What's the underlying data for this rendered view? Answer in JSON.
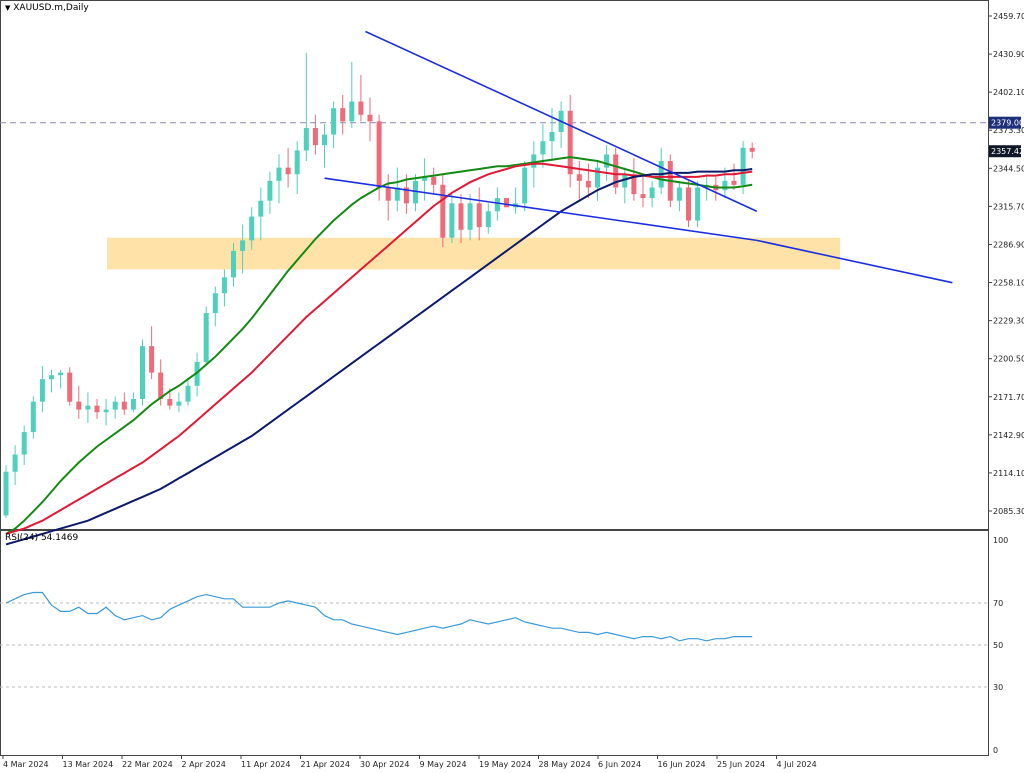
{
  "header": {
    "symbol_label": "XAUUSD.m,Daily",
    "menu_icon": "triangle-down-icon"
  },
  "rsi_header": {
    "label": "RSI(24) 54.1469"
  },
  "colors": {
    "bull": "#4fd0bd",
    "bear": "#f06b7a",
    "ma_green": "#148a14",
    "ma_red": "#e01a35",
    "ma_navy": "#0b1a6a",
    "trend": "#1a2ee0",
    "zone": "#ffe2a8",
    "rsi": "#3a9ad9",
    "grid": "#bcbcbc",
    "box_dark": "#101827",
    "box_blue": "#1c2f7a"
  },
  "chart_data": [
    {
      "type": "candlestick",
      "title": "XAUUSD.m,Daily",
      "y_ticks": [
        "2459.70",
        "2430.90",
        "2402.10",
        "2373.30",
        "2344.50",
        "2315.70",
        "2286.90",
        "2258.10",
        "2229.30",
        "2200.50",
        "2171.70",
        "2142.90",
        "2114.10",
        "2085.30"
      ],
      "ylim": [
        2068,
        2460
      ],
      "x_ticks": [
        "4 Mar 2024",
        "13 Mar 2024",
        "22 Mar 2024",
        "2 Apr 2024",
        "11 Apr 2024",
        "21 Apr 2024",
        "30 Apr 2024",
        "9 May 2024",
        "19 May 2024",
        "28 May 2024",
        "6 Jun 2024",
        "16 Jun 2024",
        "25 Jun 2024",
        "4 Jul 2024"
      ],
      "price_markers": [
        {
          "label": "2379.00",
          "value": 2379.0,
          "style": "dashed"
        },
        {
          "label": "2357.42",
          "value": 2357.42,
          "style": "current"
        }
      ],
      "candles": [
        {
          "o": 2082,
          "h": 2120,
          "l": 2080,
          "c": 2115
        },
        {
          "o": 2115,
          "h": 2135,
          "l": 2105,
          "c": 2128
        },
        {
          "o": 2128,
          "h": 2150,
          "l": 2120,
          "c": 2145
        },
        {
          "o": 2145,
          "h": 2172,
          "l": 2140,
          "c": 2168
        },
        {
          "o": 2168,
          "h": 2195,
          "l": 2160,
          "c": 2185
        },
        {
          "o": 2185,
          "h": 2192,
          "l": 2175,
          "c": 2188
        },
        {
          "o": 2188,
          "h": 2192,
          "l": 2178,
          "c": 2190
        },
        {
          "o": 2190,
          "h": 2194,
          "l": 2165,
          "c": 2168
        },
        {
          "o": 2168,
          "h": 2180,
          "l": 2155,
          "c": 2162
        },
        {
          "o": 2162,
          "h": 2175,
          "l": 2152,
          "c": 2165
        },
        {
          "o": 2165,
          "h": 2170,
          "l": 2155,
          "c": 2160
        },
        {
          "o": 2160,
          "h": 2170,
          "l": 2150,
          "c": 2162
        },
        {
          "o": 2162,
          "h": 2172,
          "l": 2155,
          "c": 2168
        },
        {
          "o": 2168,
          "h": 2175,
          "l": 2158,
          "c": 2162
        },
        {
          "o": 2162,
          "h": 2175,
          "l": 2160,
          "c": 2170
        },
        {
          "o": 2170,
          "h": 2215,
          "l": 2165,
          "c": 2210
        },
        {
          "o": 2210,
          "h": 2225,
          "l": 2185,
          "c": 2190
        },
        {
          "o": 2190,
          "h": 2200,
          "l": 2165,
          "c": 2170
        },
        {
          "o": 2170,
          "h": 2178,
          "l": 2162,
          "c": 2165
        },
        {
          "o": 2165,
          "h": 2175,
          "l": 2160,
          "c": 2168
        },
        {
          "o": 2168,
          "h": 2185,
          "l": 2165,
          "c": 2180
        },
        {
          "o": 2180,
          "h": 2205,
          "l": 2172,
          "c": 2198
        },
        {
          "o": 2198,
          "h": 2240,
          "l": 2195,
          "c": 2235
        },
        {
          "o": 2235,
          "h": 2255,
          "l": 2225,
          "c": 2250
        },
        {
          "o": 2250,
          "h": 2268,
          "l": 2240,
          "c": 2262
        },
        {
          "o": 2262,
          "h": 2288,
          "l": 2255,
          "c": 2282
        },
        {
          "o": 2282,
          "h": 2302,
          "l": 2265,
          "c": 2290
        },
        {
          "o": 2290,
          "h": 2315,
          "l": 2283,
          "c": 2308
        },
        {
          "o": 2308,
          "h": 2330,
          "l": 2290,
          "c": 2320
        },
        {
          "o": 2320,
          "h": 2342,
          "l": 2310,
          "c": 2335
        },
        {
          "o": 2335,
          "h": 2355,
          "l": 2318,
          "c": 2345
        },
        {
          "o": 2345,
          "h": 2360,
          "l": 2330,
          "c": 2340
        },
        {
          "o": 2340,
          "h": 2365,
          "l": 2325,
          "c": 2358
        },
        {
          "o": 2358,
          "h": 2432,
          "l": 2350,
          "c": 2375
        },
        {
          "o": 2375,
          "h": 2385,
          "l": 2355,
          "c": 2362
        },
        {
          "o": 2362,
          "h": 2378,
          "l": 2345,
          "c": 2370
        },
        {
          "o": 2370,
          "h": 2395,
          "l": 2360,
          "c": 2390
        },
        {
          "o": 2390,
          "h": 2400,
          "l": 2370,
          "c": 2380
        },
        {
          "o": 2380,
          "h": 2425,
          "l": 2375,
          "c": 2395
        },
        {
          "o": 2395,
          "h": 2415,
          "l": 2380,
          "c": 2385
        },
        {
          "o": 2385,
          "h": 2398,
          "l": 2365,
          "c": 2380
        },
        {
          "o": 2380,
          "h": 2385,
          "l": 2320,
          "c": 2330
        },
        {
          "o": 2330,
          "h": 2340,
          "l": 2305,
          "c": 2320
        },
        {
          "o": 2320,
          "h": 2345,
          "l": 2312,
          "c": 2330
        },
        {
          "o": 2330,
          "h": 2340,
          "l": 2310,
          "c": 2318
        },
        {
          "o": 2318,
          "h": 2340,
          "l": 2312,
          "c": 2335
        },
        {
          "o": 2335,
          "h": 2352,
          "l": 2320,
          "c": 2338
        },
        {
          "o": 2338,
          "h": 2345,
          "l": 2325,
          "c": 2332
        },
        {
          "o": 2332,
          "h": 2340,
          "l": 2285,
          "c": 2292
        },
        {
          "o": 2292,
          "h": 2325,
          "l": 2288,
          "c": 2318
        },
        {
          "o": 2318,
          "h": 2325,
          "l": 2288,
          "c": 2298
        },
        {
          "o": 2298,
          "h": 2325,
          "l": 2290,
          "c": 2318
        },
        {
          "o": 2318,
          "h": 2330,
          "l": 2290,
          "c": 2300
        },
        {
          "o": 2300,
          "h": 2318,
          "l": 2295,
          "c": 2312
        },
        {
          "o": 2312,
          "h": 2330,
          "l": 2305,
          "c": 2322
        },
        {
          "o": 2322,
          "h": 2320,
          "l": 2315,
          "c": 2315
        },
        {
          "o": 2315,
          "h": 2330,
          "l": 2310,
          "c": 2318
        },
        {
          "o": 2318,
          "h": 2350,
          "l": 2312,
          "c": 2345
        },
        {
          "o": 2345,
          "h": 2365,
          "l": 2330,
          "c": 2355
        },
        {
          "o": 2355,
          "h": 2378,
          "l": 2345,
          "c": 2365
        },
        {
          "o": 2365,
          "h": 2390,
          "l": 2350,
          "c": 2372
        },
        {
          "o": 2372,
          "h": 2395,
          "l": 2360,
          "c": 2388
        },
        {
          "o": 2388,
          "h": 2400,
          "l": 2330,
          "c": 2340
        },
        {
          "o": 2340,
          "h": 2350,
          "l": 2320,
          "c": 2335
        },
        {
          "o": 2335,
          "h": 2348,
          "l": 2322,
          "c": 2330
        },
        {
          "o": 2330,
          "h": 2350,
          "l": 2320,
          "c": 2345
        },
        {
          "o": 2345,
          "h": 2362,
          "l": 2335,
          "c": 2355
        },
        {
          "o": 2355,
          "h": 2360,
          "l": 2325,
          "c": 2330
        },
        {
          "o": 2330,
          "h": 2345,
          "l": 2318,
          "c": 2340
        },
        {
          "o": 2340,
          "h": 2352,
          "l": 2320,
          "c": 2325
        },
        {
          "o": 2325,
          "h": 2340,
          "l": 2315,
          "c": 2322
        },
        {
          "o": 2322,
          "h": 2335,
          "l": 2315,
          "c": 2330
        },
        {
          "o": 2330,
          "h": 2360,
          "l": 2325,
          "c": 2350
        },
        {
          "o": 2350,
          "h": 2355,
          "l": 2315,
          "c": 2320
        },
        {
          "o": 2320,
          "h": 2335,
          "l": 2312,
          "c": 2330
        },
        {
          "o": 2330,
          "h": 2335,
          "l": 2300,
          "c": 2305
        },
        {
          "o": 2305,
          "h": 2335,
          "l": 2300,
          "c": 2330
        },
        {
          "o": 2330,
          "h": 2340,
          "l": 2320,
          "c": 2332
        },
        {
          "o": 2332,
          "h": 2338,
          "l": 2320,
          "c": 2328
        },
        {
          "o": 2328,
          "h": 2345,
          "l": 2322,
          "c": 2335
        },
        {
          "o": 2335,
          "h": 2348,
          "l": 2328,
          "c": 2332
        },
        {
          "o": 2332,
          "h": 2365,
          "l": 2325,
          "c": 2360
        },
        {
          "o": 2360,
          "h": 2364,
          "l": 2352,
          "c": 2357
        }
      ],
      "moving_averages": [
        {
          "name": "",
          "color_key": "ma_green",
          "values": [
            2068,
            2072,
            2078,
            2085,
            2092,
            2100,
            2108,
            2115,
            2122,
            2128,
            2134,
            2139,
            2144,
            2149,
            2154,
            2160,
            2166,
            2171,
            2176,
            2180,
            2185,
            2190,
            2196,
            2202,
            2209,
            2216,
            2223,
            2231,
            2240,
            2249,
            2258,
            2267,
            2275,
            2283,
            2291,
            2298,
            2305,
            2311,
            2317,
            2322,
            2326,
            2330,
            2333,
            2334,
            2336,
            2337,
            2338,
            2339,
            2340,
            2341,
            2342,
            2343,
            2344,
            2345,
            2346,
            2346,
            2347,
            2348,
            2349,
            2350,
            2351,
            2352,
            2353,
            2352,
            2351,
            2350,
            2348,
            2346,
            2344,
            2342,
            2340,
            2338,
            2336,
            2335,
            2334,
            2333,
            2332,
            2331,
            2330,
            2330,
            2330,
            2331,
            2332
          ]
        },
        {
          "name": "",
          "color_key": "ma_red",
          "values": [
            2068,
            2070,
            2072,
            2075,
            2078,
            2082,
            2086,
            2090,
            2094,
            2098,
            2102,
            2106,
            2110,
            2114,
            2118,
            2122,
            2127,
            2132,
            2137,
            2142,
            2148,
            2154,
            2160,
            2166,
            2172,
            2178,
            2184,
            2190,
            2197,
            2204,
            2211,
            2218,
            2225,
            2232,
            2238,
            2244,
            2250,
            2256,
            2262,
            2268,
            2274,
            2280,
            2286,
            2292,
            2298,
            2304,
            2310,
            2316,
            2321,
            2326,
            2330,
            2334,
            2337,
            2340,
            2342,
            2344,
            2346,
            2347,
            2348,
            2348,
            2347,
            2346,
            2345,
            2344,
            2343,
            2342,
            2341,
            2340,
            2340,
            2339,
            2339,
            2338,
            2338,
            2338,
            2338,
            2338,
            2338,
            2339,
            2339,
            2340,
            2340,
            2341,
            2342
          ]
        },
        {
          "name": "",
          "color_key": "ma_navy",
          "values": [
            2060,
            2062,
            2064,
            2066,
            2068,
            2070,
            2072,
            2074,
            2076,
            2078,
            2081,
            2084,
            2087,
            2090,
            2093,
            2096,
            2099,
            2102,
            2106,
            2110,
            2114,
            2118,
            2122,
            2126,
            2130,
            2134,
            2138,
            2142,
            2147,
            2152,
            2157,
            2162,
            2167,
            2172,
            2177,
            2182,
            2187,
            2192,
            2197,
            2202,
            2207,
            2212,
            2217,
            2222,
            2227,
            2232,
            2237,
            2242,
            2247,
            2252,
            2257,
            2262,
            2267,
            2272,
            2277,
            2282,
            2287,
            2292,
            2297,
            2302,
            2307,
            2312,
            2316,
            2320,
            2324,
            2328,
            2331,
            2334,
            2336,
            2338,
            2339,
            2340,
            2340,
            2341,
            2341,
            2341,
            2342,
            2342,
            2342,
            2342,
            2343,
            2343,
            2344
          ]
        }
      ],
      "trendlines": [
        {
          "from": [
            39.5,
            2448
          ],
          "to": [
            82.5,
            2312
          ]
        },
        {
          "from": [
            35,
            2337
          ],
          "to": [
            82.5,
            2290
          ]
        },
        {
          "from": [
            82.5,
            2290
          ],
          "to": [
            104,
            2258
          ]
        }
      ],
      "zone": {
        "from_index": 8,
        "to_index": 68,
        "low": 2268,
        "high": 2292
      }
    },
    {
      "type": "line",
      "title": "RSI(24) 54.1469",
      "y_ticks": [
        "100",
        "70",
        "50",
        "30",
        "0"
      ],
      "levels": [
        70,
        50,
        30
      ],
      "ylim": [
        0,
        100
      ],
      "values": [
        70,
        72,
        74,
        75,
        75,
        69,
        66,
        66,
        68,
        65,
        65,
        68,
        64,
        62,
        63,
        64,
        62,
        63,
        67,
        69,
        71,
        73,
        74,
        73,
        72,
        72,
        68,
        68,
        68,
        68,
        70,
        71,
        70,
        69,
        68,
        64,
        62,
        62,
        60,
        59,
        58,
        57,
        56,
        55,
        56,
        57,
        58,
        59,
        58,
        59,
        60,
        62,
        61,
        60,
        61,
        62,
        63,
        61,
        60,
        59,
        58,
        58,
        57,
        56,
        56,
        55,
        56,
        55,
        54,
        53,
        54,
        54,
        53,
        54,
        52,
        53,
        53,
        52,
        53,
        53,
        54,
        54,
        54
      ]
    }
  ]
}
